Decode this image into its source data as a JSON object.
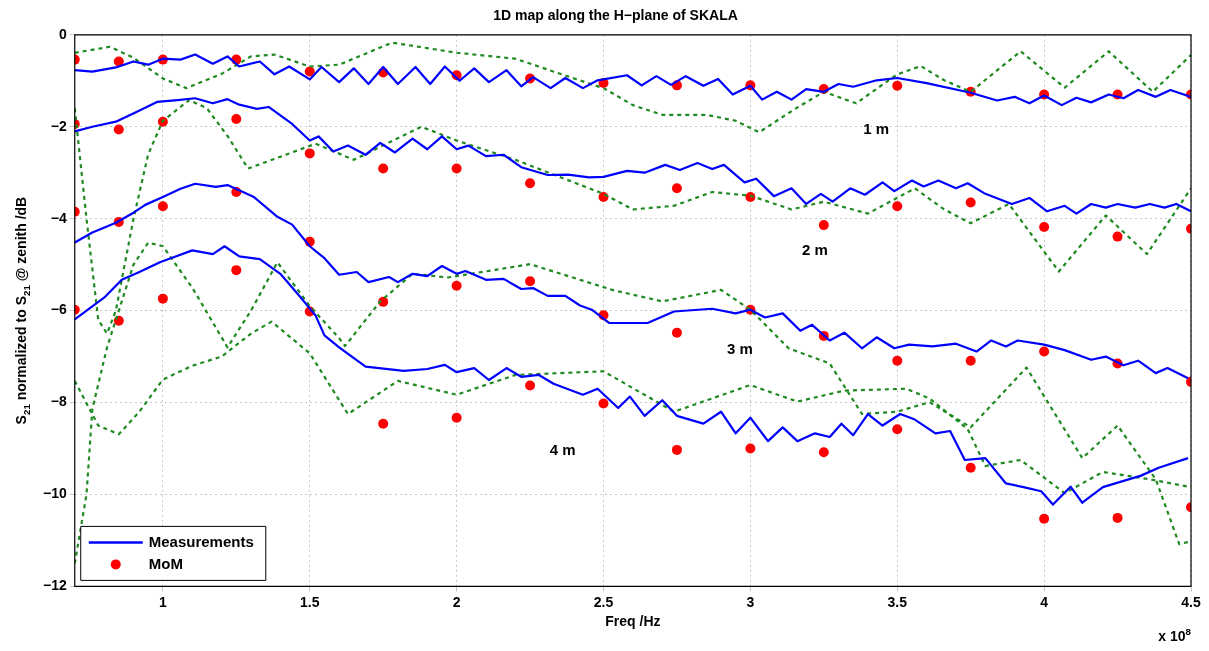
{
  "chart_data": {
    "type": "line",
    "title": "1D map along the H−plane of SKALA",
    "xlabel": "Freq /Hz",
    "ylabel": "S$_{21}$ normalized to S$_{21}$ @ zenith /dB",
    "xlim": [
      0.7,
      4.5
    ],
    "xticks": [
      1,
      1.5,
      2,
      2.5,
      3,
      3.5,
      4,
      4.5
    ],
    "ylim": [
      -12,
      0
    ],
    "yticks": [
      -12,
      -10,
      -8,
      -6,
      -4,
      -2,
      0
    ],
    "grid": true,
    "legend": "bottom left",
    "annotations": [
      "1 m",
      "2 m",
      "3 m",
      "4 m",
      "x 10$^{8}$"
    ],
    "series": [
      {
        "type": "line",
        "name": "Measurements",
        "color": "#0000ff",
        "line_style": "solid",
        "marker": "none",
        "x": [
          0.7,
          0.76,
          0.84,
          0.9,
          0.95,
          1.0,
          1.06,
          1.11,
          1.17,
          1.22,
          1.26,
          1.33,
          1.38,
          1.43,
          1.5,
          1.54,
          1.6,
          1.65,
          1.7,
          1.75,
          1.8,
          1.86,
          1.91,
          1.96,
          2.01,
          2.06,
          2.11,
          2.17,
          2.22,
          2.26,
          2.32,
          2.37,
          2.43,
          2.48,
          2.58,
          2.63,
          2.68,
          2.73,
          2.78,
          2.84,
          2.89,
          2.94,
          3.0,
          3.04,
          3.09,
          3.14,
          3.19,
          3.25,
          3.3,
          3.35,
          3.43,
          3.5,
          3.6,
          3.75,
          3.84,
          3.9,
          3.95,
          4.0,
          4.06,
          4.11,
          4.16,
          4.22,
          4.27,
          4.32,
          4.38,
          4.43,
          4.5
        ],
        "values": [
          -0.77,
          -0.8,
          -0.71,
          -0.58,
          -0.65,
          -0.52,
          -0.54,
          -0.43,
          -0.63,
          -0.47,
          -0.69,
          -0.58,
          -0.86,
          -0.69,
          -0.97,
          -0.7,
          -1.03,
          -0.73,
          -1.07,
          -0.7,
          -1.07,
          -0.7,
          -1.07,
          -0.69,
          -1.0,
          -0.73,
          -1.03,
          -0.77,
          -1.12,
          -0.92,
          -1.16,
          -0.94,
          -1.16,
          -0.99,
          -0.88,
          -1.1,
          -0.9,
          -1.09,
          -0.9,
          -1.11,
          -0.96,
          -1.3,
          -1.11,
          -1.41,
          -1.24,
          -1.41,
          -1.18,
          -1.24,
          -1.07,
          -1.13,
          -0.99,
          -0.94,
          -1.05,
          -1.26,
          -1.43,
          -1.35,
          -1.49,
          -1.32,
          -1.53,
          -1.37,
          -1.47,
          -1.3,
          -1.38,
          -1.2,
          -1.35,
          -1.2,
          -1.35
        ]
      },
      {
        "type": "line",
        "color": "#0000ff",
        "line_style": "solid",
        "marker": "none",
        "x": [
          0.7,
          0.76,
          0.84,
          0.91,
          0.98,
          1.05,
          1.11,
          1.17,
          1.22,
          1.26,
          1.32,
          1.36,
          1.44,
          1.5,
          1.53,
          1.58,
          1.63,
          1.69,
          1.74,
          1.79,
          1.85,
          1.9,
          1.95,
          2.0,
          2.04,
          2.1,
          2.16,
          2.22,
          2.31,
          2.38,
          2.45,
          2.5,
          2.58,
          2.64,
          2.71,
          2.76,
          2.82,
          2.87,
          2.91,
          2.98,
          3.02,
          3.08,
          3.14,
          3.19,
          3.24,
          3.28,
          3.34,
          3.39,
          3.45,
          3.49,
          3.55,
          3.59,
          3.64,
          3.7,
          3.74,
          3.8,
          3.89,
          3.95,
          4.01,
          4.07,
          4.11,
          4.16,
          4.21,
          4.25,
          4.31,
          4.36,
          4.41,
          4.45,
          4.5
        ],
        "values": [
          -2.1,
          -2.0,
          -1.89,
          -1.68,
          -1.46,
          -1.42,
          -1.38,
          -1.49,
          -1.4,
          -1.52,
          -1.61,
          -1.57,
          -1.94,
          -2.3,
          -2.21,
          -2.54,
          -2.41,
          -2.61,
          -2.35,
          -2.56,
          -2.26,
          -2.49,
          -2.21,
          -2.49,
          -2.41,
          -2.64,
          -2.61,
          -2.88,
          -3.05,
          -3.04,
          -3.1,
          -3.09,
          -2.96,
          -3.0,
          -2.83,
          -2.94,
          -2.79,
          -2.92,
          -2.83,
          -3.21,
          -3.13,
          -3.51,
          -3.34,
          -3.68,
          -3.46,
          -3.63,
          -3.34,
          -3.48,
          -3.21,
          -3.4,
          -3.17,
          -3.3,
          -3.17,
          -3.34,
          -3.23,
          -3.46,
          -3.68,
          -3.55,
          -3.84,
          -3.72,
          -3.89,
          -3.68,
          -3.76,
          -3.68,
          -3.76,
          -3.68,
          -3.76,
          -3.68,
          -3.84
        ]
      },
      {
        "type": "line",
        "color": "#0000ff",
        "line_style": "solid",
        "marker": "none",
        "x": [
          0.7,
          0.76,
          0.84,
          0.9,
          0.94,
          1.0,
          1.06,
          1.11,
          1.18,
          1.22,
          1.31,
          1.39,
          1.44,
          1.5,
          1.55,
          1.6,
          1.66,
          1.7,
          1.77,
          1.8,
          1.85,
          1.9,
          1.95,
          2.0,
          2.03,
          2.1,
          2.16,
          2.22,
          2.26,
          2.31,
          2.37,
          2.42,
          2.46,
          2.52,
          2.65,
          2.74,
          2.87,
          2.95,
          3.0,
          3.05,
          3.11,
          3.17,
          3.21,
          3.27,
          3.32,
          3.38,
          3.43,
          3.49,
          3.54,
          3.62,
          3.7,
          3.77,
          3.82,
          3.87,
          3.91,
          4.0,
          4.07,
          4.16,
          4.21,
          4.27,
          4.32,
          4.38,
          4.42,
          4.49
        ],
        "values": [
          -4.52,
          -4.3,
          -4.09,
          -3.87,
          -3.7,
          -3.53,
          -3.35,
          -3.24,
          -3.31,
          -3.27,
          -3.53,
          -3.96,
          -4.13,
          -4.6,
          -4.86,
          -5.22,
          -5.16,
          -5.38,
          -5.27,
          -5.38,
          -5.2,
          -5.25,
          -5.03,
          -5.2,
          -5.14,
          -5.33,
          -5.31,
          -5.53,
          -5.51,
          -5.68,
          -5.68,
          -5.89,
          -5.98,
          -6.27,
          -6.27,
          -6.02,
          -5.96,
          -6.06,
          -5.98,
          -6.15,
          -6.06,
          -6.44,
          -6.31,
          -6.65,
          -6.48,
          -6.82,
          -6.58,
          -6.82,
          -6.74,
          -6.78,
          -6.72,
          -6.89,
          -6.65,
          -6.78,
          -6.65,
          -6.74,
          -6.86,
          -7.07,
          -7.0,
          -7.19,
          -7.09,
          -7.36,
          -7.25,
          -7.47
        ]
      },
      {
        "type": "line",
        "color": "#0000ff",
        "line_style": "solid",
        "marker": "none",
        "x": [
          0.7,
          0.8,
          0.86,
          0.92,
          0.99,
          1.1,
          1.17,
          1.21,
          1.26,
          1.33,
          1.4,
          1.47,
          1.52,
          1.55,
          1.6,
          1.69,
          1.82,
          1.9,
          1.96,
          2.0,
          2.06,
          2.11,
          2.17,
          2.22,
          2.28,
          2.33,
          2.43,
          2.48,
          2.55,
          2.59,
          2.64,
          2.7,
          2.75,
          2.84,
          2.9,
          2.95,
          3.0,
          3.06,
          3.11,
          3.16,
          3.22,
          3.27,
          3.31,
          3.35,
          3.4,
          3.45,
          3.51,
          3.56,
          3.63,
          3.68,
          3.73,
          3.8,
          3.87,
          3.93,
          3.99,
          4.03,
          4.09,
          4.13,
          4.2,
          4.33,
          4.39,
          4.49
        ],
        "values": [
          -6.19,
          -5.72,
          -5.33,
          -5.16,
          -4.95,
          -4.69,
          -4.77,
          -4.6,
          -4.82,
          -4.88,
          -5.2,
          -5.72,
          -6.11,
          -6.54,
          -6.8,
          -7.22,
          -7.31,
          -7.27,
          -7.18,
          -7.34,
          -7.25,
          -7.51,
          -7.25,
          -7.44,
          -7.4,
          -7.59,
          -7.83,
          -7.7,
          -8.12,
          -7.87,
          -8.29,
          -7.95,
          -8.29,
          -8.46,
          -8.2,
          -8.67,
          -8.33,
          -8.84,
          -8.54,
          -8.84,
          -8.67,
          -8.75,
          -8.46,
          -8.71,
          -8.25,
          -8.5,
          -8.25,
          -8.37,
          -8.67,
          -8.62,
          -9.25,
          -9.21,
          -9.76,
          -9.84,
          -9.93,
          -10.22,
          -9.83,
          -10.18,
          -9.84,
          -9.59,
          -9.42,
          -9.21
        ]
      },
      {
        "type": "line",
        "color": "#1f8a1f",
        "line_style": "dotted",
        "marker": "none",
        "x": [
          0.7,
          0.82,
          0.9,
          1.0,
          1.08,
          1.2,
          1.3,
          1.38,
          1.5,
          1.6,
          1.78,
          2.0,
          2.2,
          2.4,
          2.5,
          2.6,
          2.7,
          2.85,
          2.95,
          3.03,
          3.15,
          3.25,
          3.36,
          3.5,
          3.58,
          3.66,
          3.75,
          3.92,
          4.07,
          4.22,
          4.37,
          4.5
        ],
        "values": [
          -0.39,
          -0.26,
          -0.5,
          -0.95,
          -1.16,
          -0.85,
          -0.47,
          -0.43,
          -0.69,
          -0.65,
          -0.17,
          -0.39,
          -0.52,
          -0.95,
          -1.16,
          -1.53,
          -1.74,
          -1.74,
          -1.87,
          -2.12,
          -1.62,
          -1.24,
          -1.49,
          -0.86,
          -0.68,
          -0.99,
          -1.24,
          -0.36,
          -1.15,
          -0.36,
          -1.24,
          -0.44
        ]
      },
      {
        "type": "line",
        "color": "#1f8a1f",
        "line_style": "dotted",
        "marker": "none",
        "x": [
          0.7,
          0.74,
          0.78,
          0.81,
          0.84,
          0.9,
          0.95,
          1.0,
          1.09,
          1.15,
          1.22,
          1.29,
          1.38,
          1.52,
          1.65,
          1.88,
          2.0,
          2.2,
          2.5,
          2.6,
          2.74,
          2.87,
          3.0,
          3.14,
          3.25,
          3.4,
          3.56,
          3.66,
          3.75,
          3.88,
          4.05,
          4.21,
          4.35,
          4.5
        ],
        "values": [
          -1.6,
          -4.0,
          -6.2,
          -6.5,
          -6.0,
          -4.0,
          -2.6,
          -1.87,
          -1.42,
          -1.6,
          -2.2,
          -2.91,
          -2.7,
          -2.37,
          -2.72,
          -2.0,
          -2.3,
          -2.72,
          -3.46,
          -3.8,
          -3.72,
          -3.42,
          -3.5,
          -3.8,
          -3.63,
          -3.89,
          -3.34,
          -3.8,
          -4.1,
          -3.68,
          -5.15,
          -3.93,
          -4.77,
          -3.34
        ]
      },
      {
        "type": "line",
        "color": "#1f8a1f",
        "line_style": "dotted",
        "marker": "none",
        "x": [
          0.7,
          0.78,
          0.85,
          0.92,
          1.0,
          1.1,
          1.2,
          1.3,
          1.37,
          1.5,
          1.63,
          1.8,
          2.0,
          2.2,
          2.5,
          2.74,
          3.0,
          3.16,
          3.32,
          3.53,
          3.61,
          3.74,
          3.8,
          3.92,
          4.07,
          4.2,
          4.36,
          4.5
        ],
        "values": [
          -7.53,
          -8.5,
          -8.69,
          -8.2,
          -7.5,
          -7.2,
          -7.0,
          -6.5,
          -6.24,
          -6.93,
          -8.25,
          -7.53,
          -7.83,
          -7.4,
          -7.32,
          -8.2,
          -7.62,
          -7.98,
          -7.74,
          -7.7,
          -7.91,
          -8.58,
          -9.38,
          -9.25,
          -9.97,
          -9.51,
          -9.67,
          -9.84
        ]
      },
      {
        "type": "line",
        "color": "#1f8a1f",
        "line_style": "dotted",
        "marker": "none",
        "x": [
          0.7,
          0.74,
          0.76,
          0.81,
          0.9,
          0.95,
          1.0,
          1.1,
          1.22,
          1.3,
          1.39,
          1.5,
          1.6,
          1.62,
          1.74,
          1.85,
          1.97,
          2.25,
          2.53,
          2.7,
          2.9,
          3.0,
          3.13,
          3.27,
          3.38,
          3.5,
          3.61,
          3.75,
          3.94,
          4.13,
          4.25,
          4.38,
          4.46,
          4.5
        ],
        "values": [
          -11.5,
          -10.0,
          -8.14,
          -6.8,
          -5.0,
          -4.52,
          -4.6,
          -5.5,
          -6.8,
          -6.0,
          -4.95,
          -5.9,
          -6.6,
          -6.77,
          -5.8,
          -5.2,
          -5.28,
          -4.99,
          -5.55,
          -5.8,
          -5.55,
          -5.98,
          -6.82,
          -7.15,
          -8.25,
          -8.2,
          -7.99,
          -8.54,
          -7.24,
          -9.21,
          -8.5,
          -9.67,
          -11.08,
          -11.02
        ]
      },
      {
        "type": "scatter",
        "name": "MoM",
        "color": "#ff0000",
        "marker": "circle",
        "x": [
          0.7,
          0.85,
          1.0,
          1.25,
          1.5,
          1.75,
          2.0,
          2.25,
          2.5,
          2.75,
          3.0,
          3.25,
          3.5,
          3.75,
          4.0,
          4.25,
          4.5
        ],
        "values": [
          -0.54,
          -0.58,
          -0.54,
          -0.54,
          -0.8,
          -0.82,
          -0.88,
          -0.95,
          -1.05,
          -1.1,
          -1.1,
          -1.18,
          -1.11,
          -1.24,
          -1.3,
          -1.3,
          -1.3
        ]
      },
      {
        "type": "scatter",
        "color": "#ff0000",
        "marker": "circle",
        "x": [
          0.7,
          0.85,
          1.0,
          1.25,
          1.5,
          1.75,
          2.0,
          2.25,
          2.5,
          2.75,
          3.0,
          3.25,
          3.5,
          3.75,
          4.0,
          4.25,
          4.5
        ],
        "values": [
          -1.94,
          -2.06,
          -1.89,
          -1.83,
          -2.58,
          -2.91,
          -2.91,
          -3.23,
          -3.53,
          -3.34,
          -3.53,
          -4.14,
          -3.73,
          -3.65,
          -4.18,
          -4.39,
          -4.22
        ]
      },
      {
        "type": "scatter",
        "color": "#ff0000",
        "marker": "circle",
        "x": [
          0.7,
          0.85,
          1.0,
          1.25,
          1.5,
          1.75,
          2.0,
          2.25,
          2.5,
          2.75,
          3.0,
          3.25,
          3.5,
          3.75,
          4.0,
          4.25,
          4.5
        ],
        "values": [
          -3.85,
          -4.07,
          -3.73,
          -3.42,
          -4.5,
          -5.81,
          -5.46,
          -5.36,
          -6.1,
          -6.48,
          -5.98,
          -6.55,
          -7.09,
          -7.09,
          -6.89,
          -7.15,
          -7.55
        ]
      },
      {
        "type": "scatter",
        "color": "#ff0000",
        "marker": "circle",
        "x": [
          0.7,
          0.85,
          1.0,
          1.25,
          1.5,
          1.75,
          2.0,
          2.25,
          2.5,
          2.75,
          3.0,
          3.25,
          3.5,
          3.75,
          4.0,
          4.25,
          4.5
        ],
        "values": [
          -5.98,
          -6.22,
          -5.74,
          -5.12,
          -6.02,
          -8.46,
          -8.33,
          -7.63,
          -8.02,
          -9.03,
          -9.0,
          -9.08,
          -8.58,
          -9.42,
          -10.53,
          -10.51,
          -10.28
        ]
      }
    ]
  }
}
